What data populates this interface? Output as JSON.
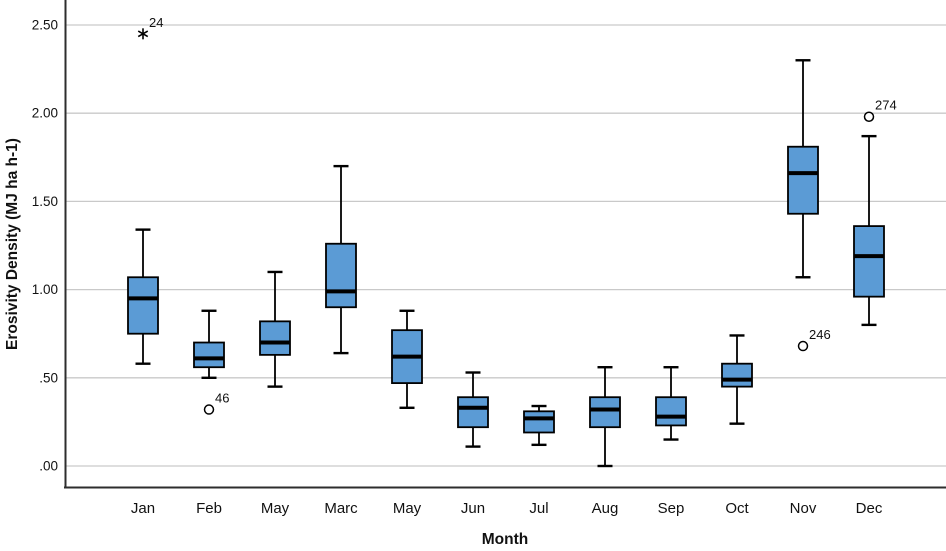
{
  "chart_data": {
    "type": "boxplot",
    "title": "",
    "xlabel": "Month",
    "ylabel": "Erosivity Density (MJ ha h-1)",
    "ylim": [
      -0.12,
      2.64
    ],
    "grid": "horizontal-only",
    "legend": "none",
    "box_fill_color": "#5B9BD5",
    "box_border_color": "#000000",
    "gridline_color": "#c9c9c9",
    "axis_line_color": "#2e2e2e",
    "yticks": [
      {
        "value": 0.0,
        "label": ".00"
      },
      {
        "value": 0.5,
        "label": ".50"
      },
      {
        "value": 1.0,
        "label": "1.00"
      },
      {
        "value": 1.5,
        "label": "1.50"
      },
      {
        "value": 2.0,
        "label": "2.00"
      },
      {
        "value": 2.5,
        "label": "2.50"
      }
    ],
    "categories": [
      "Jan",
      "Feb",
      "May",
      "Marc",
      "May",
      "Jun",
      "Jul",
      "Aug",
      "Sep",
      "Oct",
      "Nov",
      "Dec"
    ],
    "series": [
      {
        "month": "Jan",
        "whisker_low": 0.58,
        "q1": 0.75,
        "median": 0.95,
        "q3": 1.07,
        "whisker_high": 1.34,
        "outliers": [
          {
            "value": 2.45,
            "label": "24",
            "marker": "star"
          }
        ]
      },
      {
        "month": "Feb",
        "whisker_low": 0.5,
        "q1": 0.56,
        "median": 0.61,
        "q3": 0.7,
        "whisker_high": 0.88,
        "outliers": [
          {
            "value": 0.32,
            "label": "46",
            "marker": "circle"
          }
        ]
      },
      {
        "month": "May",
        "whisker_low": 0.45,
        "q1": 0.63,
        "median": 0.7,
        "q3": 0.82,
        "whisker_high": 1.1,
        "outliers": []
      },
      {
        "month": "Marc",
        "whisker_low": 0.64,
        "q1": 0.9,
        "median": 0.99,
        "q3": 1.26,
        "whisker_high": 1.7,
        "outliers": []
      },
      {
        "month": "May",
        "whisker_low": 0.33,
        "q1": 0.47,
        "median": 0.62,
        "q3": 0.77,
        "whisker_high": 0.88,
        "outliers": []
      },
      {
        "month": "Jun",
        "whisker_low": 0.11,
        "q1": 0.22,
        "median": 0.33,
        "q3": 0.39,
        "whisker_high": 0.53,
        "outliers": []
      },
      {
        "month": "Jul",
        "whisker_low": 0.12,
        "q1": 0.19,
        "median": 0.27,
        "q3": 0.31,
        "whisker_high": 0.34,
        "outliers": []
      },
      {
        "month": "Aug",
        "whisker_low": 0.0,
        "q1": 0.22,
        "median": 0.32,
        "q3": 0.39,
        "whisker_high": 0.56,
        "outliers": []
      },
      {
        "month": "Sep",
        "whisker_low": 0.15,
        "q1": 0.23,
        "median": 0.28,
        "q3": 0.39,
        "whisker_high": 0.56,
        "outliers": []
      },
      {
        "month": "Oct",
        "whisker_low": 0.24,
        "q1": 0.45,
        "median": 0.49,
        "q3": 0.58,
        "whisker_high": 0.74,
        "outliers": []
      },
      {
        "month": "Nov",
        "whisker_low": 1.07,
        "q1": 1.43,
        "median": 1.66,
        "q3": 1.81,
        "whisker_high": 2.3,
        "outliers": [
          {
            "value": 0.68,
            "label": "246",
            "marker": "circle"
          }
        ]
      },
      {
        "month": "Dec",
        "whisker_low": 0.8,
        "q1": 0.96,
        "median": 1.19,
        "q3": 1.36,
        "whisker_high": 1.87,
        "outliers": [
          {
            "value": 1.98,
            "label": "274",
            "marker": "circle"
          }
        ]
      }
    ]
  }
}
